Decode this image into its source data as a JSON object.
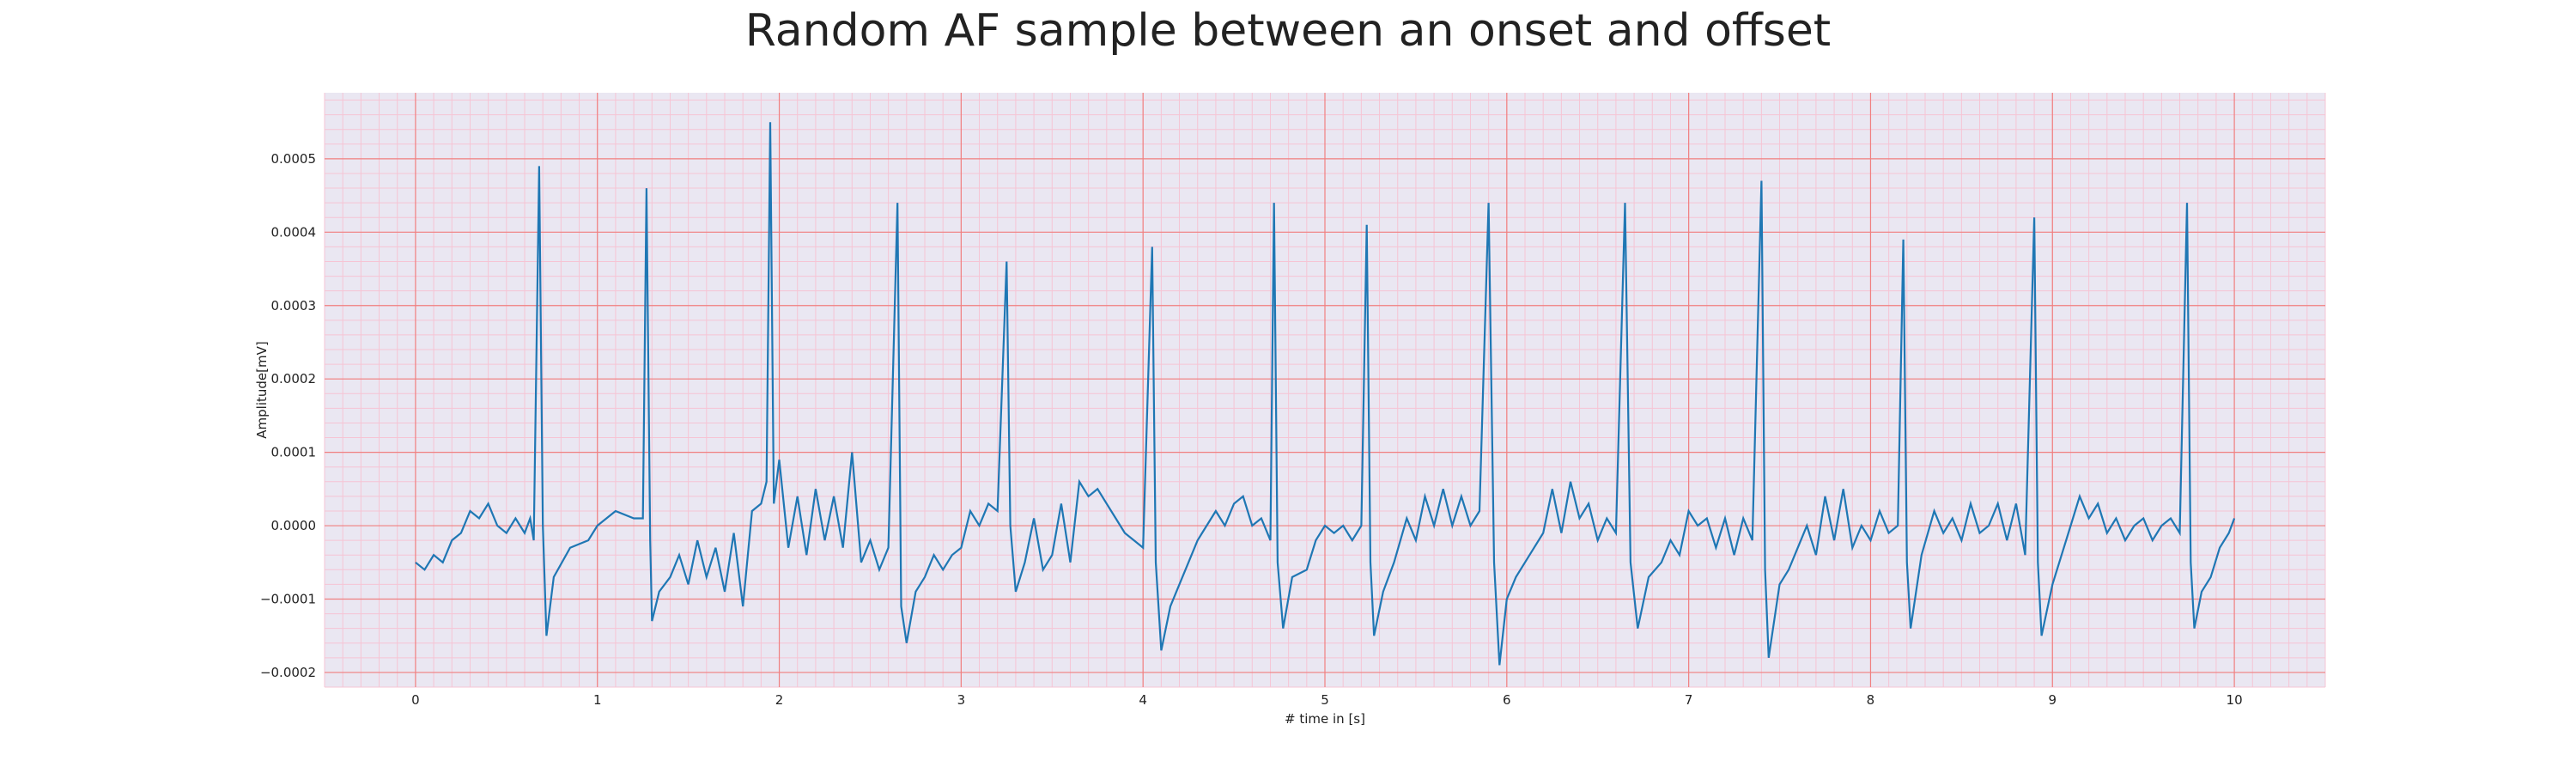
{
  "chart_data": {
    "type": "line",
    "title": "Random AF sample between an onset and offset",
    "xlabel": "# time in [s]",
    "ylabel": "Amplitude[mV]",
    "xlim": [
      -0.5,
      10.5
    ],
    "ylim": [
      -0.00022,
      0.00059
    ],
    "x_ticks": [
      0,
      1,
      2,
      3,
      4,
      5,
      6,
      7,
      8,
      9,
      10
    ],
    "y_ticks": [
      -0.0002,
      -0.0001,
      0.0,
      0.0001,
      0.0002,
      0.0003,
      0.0004,
      0.0005
    ],
    "y_tick_labels": [
      "−0.0002",
      "−0.0001",
      "0.0000",
      "0.0001",
      "0.0002",
      "0.0003",
      "0.0004",
      "0.0005"
    ],
    "grid": true,
    "colors": {
      "line": "#1f77b4",
      "major_grid": "#f08080",
      "minor_grid": "#f6c4d4",
      "plot_background": "#eae7f2"
    },
    "series": [
      {
        "values": [
          [
            0.0,
            -5e-05
          ],
          [
            0.05,
            -6e-05
          ],
          [
            0.1,
            -4e-05
          ],
          [
            0.15,
            -5e-05
          ],
          [
            0.2,
            -2e-05
          ],
          [
            0.25,
            -1e-05
          ],
          [
            0.3,
            2e-05
          ],
          [
            0.35,
            1e-05
          ],
          [
            0.4,
            3e-05
          ],
          [
            0.45,
            0.0
          ],
          [
            0.5,
            -1e-05
          ],
          [
            0.55,
            1e-05
          ],
          [
            0.6,
            -1e-05
          ],
          [
            0.63,
            1e-05
          ],
          [
            0.65,
            -2e-05
          ],
          [
            0.68,
            0.00049
          ],
          [
            0.7,
            0.0
          ],
          [
            0.72,
            -0.00015
          ],
          [
            0.76,
            -7e-05
          ],
          [
            0.85,
            -3e-05
          ],
          [
            0.95,
            -2e-05
          ],
          [
            1.0,
            0.0
          ],
          [
            1.05,
            1e-05
          ],
          [
            1.1,
            2e-05
          ],
          [
            1.2,
            1e-05
          ],
          [
            1.25,
            1e-05
          ],
          [
            1.27,
            0.00046
          ],
          [
            1.29,
            -2e-05
          ],
          [
            1.3,
            -0.00013
          ],
          [
            1.34,
            -9e-05
          ],
          [
            1.4,
            -7e-05
          ],
          [
            1.45,
            -4e-05
          ],
          [
            1.5,
            -8e-05
          ],
          [
            1.55,
            -2e-05
          ],
          [
            1.6,
            -7e-05
          ],
          [
            1.65,
            -3e-05
          ],
          [
            1.7,
            -9e-05
          ],
          [
            1.75,
            -1e-05
          ],
          [
            1.8,
            -0.00011
          ],
          [
            1.85,
            2e-05
          ],
          [
            1.9,
            3e-05
          ],
          [
            1.93,
            6e-05
          ],
          [
            1.95,
            0.00055
          ],
          [
            1.97,
            3e-05
          ],
          [
            2.0,
            9e-05
          ],
          [
            2.05,
            -3e-05
          ],
          [
            2.1,
            4e-05
          ],
          [
            2.15,
            -4e-05
          ],
          [
            2.2,
            5e-05
          ],
          [
            2.25,
            -2e-05
          ],
          [
            2.3,
            4e-05
          ],
          [
            2.35,
            -3e-05
          ],
          [
            2.4,
            0.0001
          ],
          [
            2.45,
            -5e-05
          ],
          [
            2.5,
            -2e-05
          ],
          [
            2.55,
            -6e-05
          ],
          [
            2.6,
            -3e-05
          ],
          [
            2.65,
            0.00044
          ],
          [
            2.67,
            -0.00011
          ],
          [
            2.7,
            -0.00016
          ],
          [
            2.75,
            -9e-05
          ],
          [
            2.8,
            -7e-05
          ],
          [
            2.85,
            -4e-05
          ],
          [
            2.9,
            -6e-05
          ],
          [
            2.95,
            -4e-05
          ],
          [
            3.0,
            -3e-05
          ],
          [
            3.05,
            2e-05
          ],
          [
            3.1,
            0.0
          ],
          [
            3.15,
            3e-05
          ],
          [
            3.2,
            2e-05
          ],
          [
            3.25,
            0.00036
          ],
          [
            3.27,
            0.0
          ],
          [
            3.3,
            -9e-05
          ],
          [
            3.35,
            -5e-05
          ],
          [
            3.4,
            1e-05
          ],
          [
            3.45,
            -6e-05
          ],
          [
            3.5,
            -4e-05
          ],
          [
            3.55,
            3e-05
          ],
          [
            3.6,
            -5e-05
          ],
          [
            3.65,
            6e-05
          ],
          [
            3.7,
            4e-05
          ],
          [
            3.75,
            5e-05
          ],
          [
            3.8,
            3e-05
          ],
          [
            3.85,
            1e-05
          ],
          [
            3.9,
            -1e-05
          ],
          [
            3.95,
            -2e-05
          ],
          [
            4.0,
            -3e-05
          ],
          [
            4.05,
            0.00038
          ],
          [
            4.07,
            -5e-05
          ],
          [
            4.1,
            -0.00017
          ],
          [
            4.15,
            -0.00011
          ],
          [
            4.2,
            -8e-05
          ],
          [
            4.25,
            -5e-05
          ],
          [
            4.3,
            -2e-05
          ],
          [
            4.35,
            0.0
          ],
          [
            4.4,
            2e-05
          ],
          [
            4.45,
            0.0
          ],
          [
            4.5,
            3e-05
          ],
          [
            4.55,
            4e-05
          ],
          [
            4.6,
            0.0
          ],
          [
            4.65,
            1e-05
          ],
          [
            4.7,
            -2e-05
          ],
          [
            4.72,
            0.00044
          ],
          [
            4.74,
            -5e-05
          ],
          [
            4.77,
            -0.00014
          ],
          [
            4.82,
            -7e-05
          ],
          [
            4.9,
            -6e-05
          ],
          [
            4.95,
            -2e-05
          ],
          [
            5.0,
            0.0
          ],
          [
            5.05,
            -1e-05
          ],
          [
            5.1,
            0.0
          ],
          [
            5.15,
            -2e-05
          ],
          [
            5.2,
            0.0
          ],
          [
            5.23,
            0.00041
          ],
          [
            5.25,
            -5e-05
          ],
          [
            5.27,
            -0.00015
          ],
          [
            5.32,
            -9e-05
          ],
          [
            5.38,
            -5e-05
          ],
          [
            5.45,
            1e-05
          ],
          [
            5.5,
            -2e-05
          ],
          [
            5.55,
            4e-05
          ],
          [
            5.6,
            0.0
          ],
          [
            5.65,
            5e-05
          ],
          [
            5.7,
            0.0
          ],
          [
            5.75,
            4e-05
          ],
          [
            5.8,
            0.0
          ],
          [
            5.85,
            2e-05
          ],
          [
            5.9,
            0.00044
          ],
          [
            5.93,
            -5e-05
          ],
          [
            5.96,
            -0.00019
          ],
          [
            6.0,
            -0.0001
          ],
          [
            6.05,
            -7e-05
          ],
          [
            6.1,
            -5e-05
          ],
          [
            6.15,
            -3e-05
          ],
          [
            6.2,
            -1e-05
          ],
          [
            6.25,
            5e-05
          ],
          [
            6.3,
            -1e-05
          ],
          [
            6.35,
            6e-05
          ],
          [
            6.4,
            1e-05
          ],
          [
            6.45,
            3e-05
          ],
          [
            6.5,
            -2e-05
          ],
          [
            6.55,
            1e-05
          ],
          [
            6.6,
            -1e-05
          ],
          [
            6.65,
            0.00044
          ],
          [
            6.68,
            -5e-05
          ],
          [
            6.72,
            -0.00014
          ],
          [
            6.78,
            -7e-05
          ],
          [
            6.85,
            -5e-05
          ],
          [
            6.9,
            -2e-05
          ],
          [
            6.95,
            -4e-05
          ],
          [
            7.0,
            2e-05
          ],
          [
            7.05,
            0.0
          ],
          [
            7.1,
            1e-05
          ],
          [
            7.15,
            -3e-05
          ],
          [
            7.2,
            1e-05
          ],
          [
            7.25,
            -4e-05
          ],
          [
            7.3,
            1e-05
          ],
          [
            7.35,
            -2e-05
          ],
          [
            7.4,
            0.00047
          ],
          [
            7.42,
            -6e-05
          ],
          [
            7.44,
            -0.00018
          ],
          [
            7.5,
            -8e-05
          ],
          [
            7.55,
            -6e-05
          ],
          [
            7.6,
            -3e-05
          ],
          [
            7.65,
            0.0
          ],
          [
            7.7,
            -4e-05
          ],
          [
            7.75,
            4e-05
          ],
          [
            7.8,
            -2e-05
          ],
          [
            7.85,
            5e-05
          ],
          [
            7.9,
            -3e-05
          ],
          [
            7.95,
            0.0
          ],
          [
            8.0,
            -2e-05
          ],
          [
            8.05,
            2e-05
          ],
          [
            8.1,
            -1e-05
          ],
          [
            8.15,
            0.0
          ],
          [
            8.18,
            0.00039
          ],
          [
            8.2,
            -5e-05
          ],
          [
            8.22,
            -0.00014
          ],
          [
            8.28,
            -4e-05
          ],
          [
            8.35,
            2e-05
          ],
          [
            8.4,
            -1e-05
          ],
          [
            8.45,
            1e-05
          ],
          [
            8.5,
            -2e-05
          ],
          [
            8.55,
            3e-05
          ],
          [
            8.6,
            -1e-05
          ],
          [
            8.65,
            0.0
          ],
          [
            8.7,
            3e-05
          ],
          [
            8.75,
            -2e-05
          ],
          [
            8.8,
            3e-05
          ],
          [
            8.85,
            -4e-05
          ],
          [
            8.9,
            0.00042
          ],
          [
            8.92,
            -5e-05
          ],
          [
            8.94,
            -0.00015
          ],
          [
            9.0,
            -8e-05
          ],
          [
            9.05,
            -4e-05
          ],
          [
            9.1,
            0.0
          ],
          [
            9.15,
            4e-05
          ],
          [
            9.2,
            1e-05
          ],
          [
            9.25,
            3e-05
          ],
          [
            9.3,
            -1e-05
          ],
          [
            9.35,
            1e-05
          ],
          [
            9.4,
            -2e-05
          ],
          [
            9.45,
            0.0
          ],
          [
            9.5,
            1e-05
          ],
          [
            9.55,
            -2e-05
          ],
          [
            9.6,
            0.0
          ],
          [
            9.65,
            1e-05
          ],
          [
            9.7,
            -1e-05
          ],
          [
            9.74,
            0.00044
          ],
          [
            9.76,
            -5e-05
          ],
          [
            9.78,
            -0.00014
          ],
          [
            9.82,
            -9e-05
          ],
          [
            9.87,
            -7e-05
          ],
          [
            9.92,
            -3e-05
          ],
          [
            9.97,
            -1e-05
          ],
          [
            10.0,
            1e-05
          ]
        ]
      }
    ]
  }
}
